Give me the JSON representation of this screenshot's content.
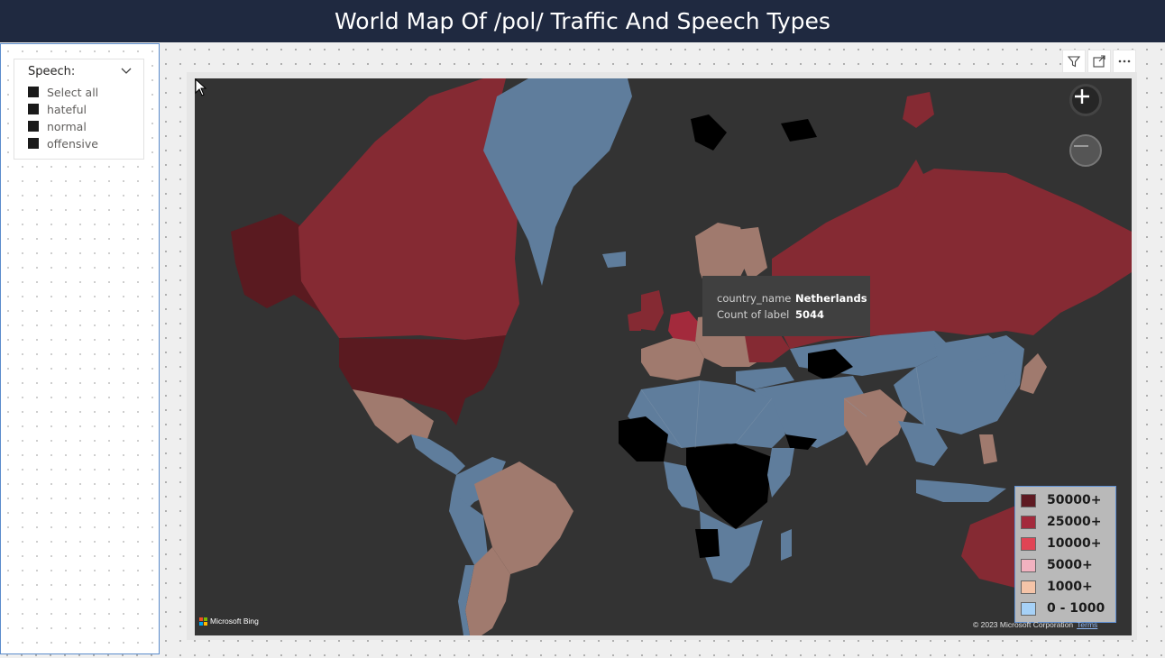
{
  "header": {
    "title": "World Map Of /pol/ Traffic And Speech Types"
  },
  "slicer": {
    "title": "Speech:",
    "items": [
      {
        "label": "Select all"
      },
      {
        "label": "hateful"
      },
      {
        "label": "normal"
      },
      {
        "label": "offensive"
      }
    ]
  },
  "visual_header": {
    "icons": [
      "filter-icon",
      "focus-mode-icon",
      "more-options-icon"
    ]
  },
  "map": {
    "zoom_in_label": "+",
    "zoom_out_label": "−",
    "tooltip": {
      "field1_label": "country_name",
      "field1_value": "Netherlands",
      "field2_label": "Count of label",
      "field2_value": "5044"
    },
    "legend": [
      {
        "label": "50000+",
        "color": "#5e1a22"
      },
      {
        "label": "25000+",
        "color": "#a32a3c"
      },
      {
        "label": "10000+",
        "color": "#e04455"
      },
      {
        "label": "5000+",
        "color": "#f2b2c0"
      },
      {
        "label": "1000+",
        "color": "#f5c4a8"
      },
      {
        "label": "0 - 1000",
        "color": "#a6d1f7"
      }
    ],
    "attribution": "Microsoft Bing",
    "copyright": "© 2023 Microsoft Corporation",
    "terms": "Terms"
  },
  "colors": {
    "title_bar": "#1f2940",
    "map_background": "#333333",
    "very_high": "#5a1a20",
    "high": "#852a33",
    "mid": "#a07a6e",
    "low": "#5f7d9c",
    "none": "#000000"
  }
}
